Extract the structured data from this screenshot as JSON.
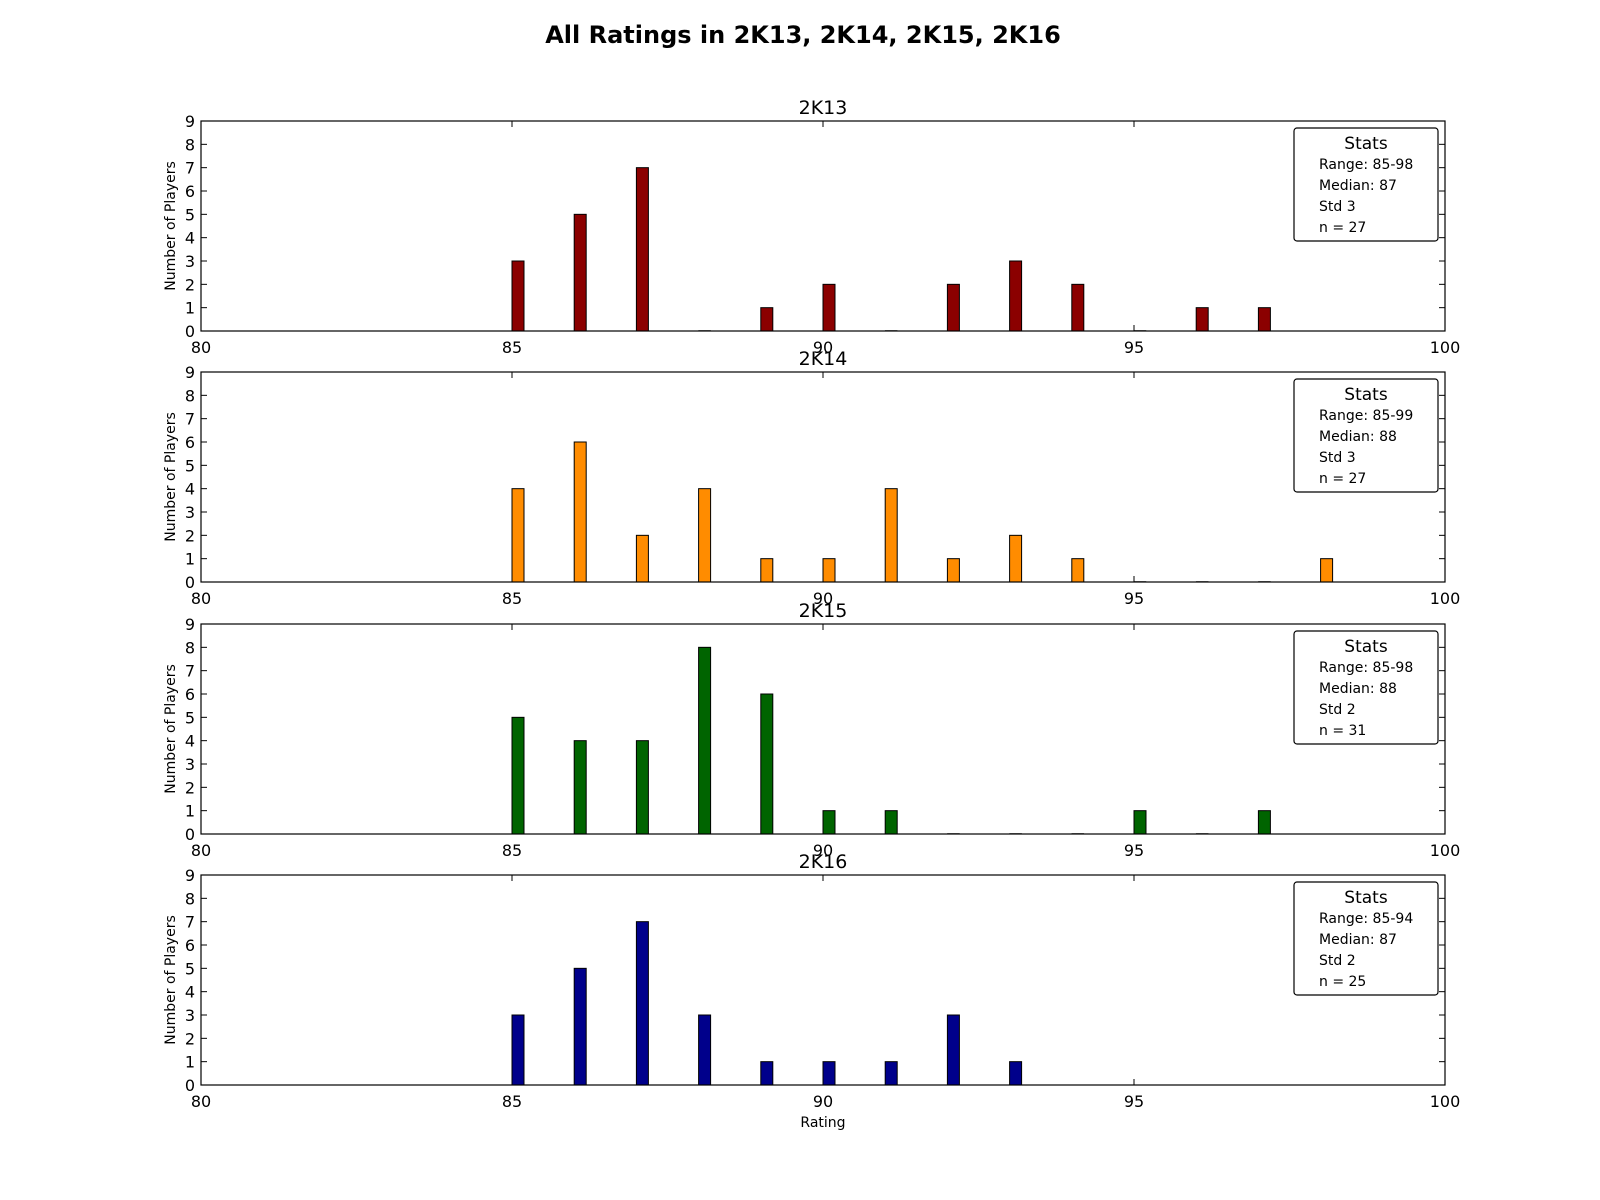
{
  "figure": {
    "title": "All Ratings in 2K13, 2K14, 2K15, 2K16"
  },
  "chart_data": [
    {
      "type": "bar",
      "title": "2K13",
      "xlabel": "",
      "ylabel": "Number of Players",
      "xlim": [
        80,
        100
      ],
      "ylim": [
        0,
        9
      ],
      "xticks": [
        80,
        85,
        90,
        95,
        100
      ],
      "yticks": [
        0,
        1,
        2,
        3,
        4,
        5,
        6,
        7,
        8,
        9
      ],
      "grid": false,
      "color": "#8b0000",
      "x": [
        85,
        86,
        87,
        88,
        89,
        90,
        91,
        92,
        93,
        94,
        95,
        96,
        97
      ],
      "values": [
        3,
        5,
        7,
        0,
        1,
        2,
        0,
        2,
        3,
        2,
        0,
        1,
        1
      ],
      "legend_position": "top-right",
      "stats": {
        "title": "Stats",
        "range": "Range: 85-98",
        "median": "Median: 87",
        "std": "Std 3",
        "n": "n = 27"
      }
    },
    {
      "type": "bar",
      "title": "2K14",
      "xlabel": "",
      "ylabel": "Number of Players",
      "xlim": [
        80,
        100
      ],
      "ylim": [
        0,
        9
      ],
      "xticks": [
        80,
        85,
        90,
        95,
        100
      ],
      "yticks": [
        0,
        1,
        2,
        3,
        4,
        5,
        6,
        7,
        8,
        9
      ],
      "grid": false,
      "color": "#ff8c00",
      "x": [
        85,
        86,
        87,
        88,
        89,
        90,
        91,
        92,
        93,
        94,
        95,
        96,
        97,
        98
      ],
      "values": [
        4,
        6,
        2,
        4,
        1,
        1,
        4,
        1,
        2,
        1,
        0,
        0,
        0,
        1
      ],
      "legend_position": "top-right",
      "stats": {
        "title": "Stats",
        "range": "Range: 85-99",
        "median": "Median: 88",
        "std": "Std 3",
        "n": "n = 27"
      }
    },
    {
      "type": "bar",
      "title": "2K15",
      "xlabel": "",
      "ylabel": "Number of Players",
      "xlim": [
        80,
        100
      ],
      "ylim": [
        0,
        9
      ],
      "xticks": [
        80,
        85,
        90,
        95,
        100
      ],
      "yticks": [
        0,
        1,
        2,
        3,
        4,
        5,
        6,
        7,
        8,
        9
      ],
      "grid": false,
      "color": "#006400",
      "x": [
        85,
        86,
        87,
        88,
        89,
        90,
        91,
        92,
        93,
        94,
        95,
        96,
        97
      ],
      "values": [
        5,
        4,
        4,
        8,
        6,
        1,
        1,
        0,
        0,
        0,
        1,
        0,
        1
      ],
      "legend_position": "top-right",
      "stats": {
        "title": "Stats",
        "range": "Range: 85-98",
        "median": "Median: 88",
        "std": "Std 2",
        "n": "n = 31"
      }
    },
    {
      "type": "bar",
      "title": "2K16",
      "xlabel": "Rating",
      "ylabel": "Number of Players",
      "xlim": [
        80,
        100
      ],
      "ylim": [
        0,
        9
      ],
      "xticks": [
        80,
        85,
        90,
        95,
        100
      ],
      "yticks": [
        0,
        1,
        2,
        3,
        4,
        5,
        6,
        7,
        8,
        9
      ],
      "grid": false,
      "color": "#00008b",
      "x": [
        85,
        86,
        87,
        88,
        89,
        90,
        91,
        92,
        93
      ],
      "values": [
        3,
        5,
        7,
        3,
        1,
        1,
        1,
        3,
        1
      ],
      "legend_position": "top-right",
      "stats": {
        "title": "Stats",
        "range": "Range: 85-94",
        "median": "Median: 87",
        "std": "Std 2",
        "n": "n = 25"
      }
    }
  ]
}
